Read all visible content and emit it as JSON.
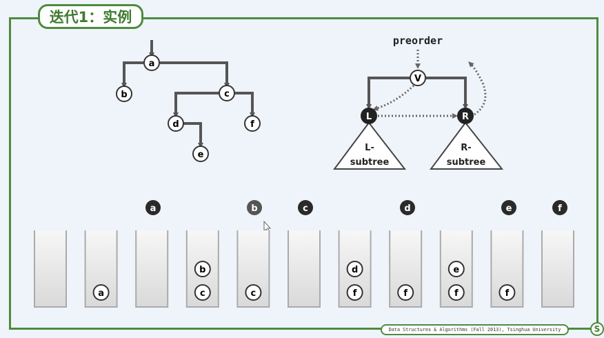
{
  "title": "迭代1：实例",
  "footer": "Data Structures & Algorithms (Fall 2013), Tsinghua University",
  "logo_glyph": "S",
  "example_tree": {
    "nodes": [
      "a",
      "b",
      "c",
      "d",
      "e",
      "f"
    ]
  },
  "schema": {
    "preorder_label": "preorder",
    "root": "V",
    "left": "L",
    "right": "R",
    "left_subtree_line1": "L-",
    "left_subtree_line2": "subtree",
    "right_subtree_line1": "R-",
    "right_subtree_line2": "subtree"
  },
  "visit_sequence": [
    "a",
    "b",
    "c",
    "d",
    "e",
    "f"
  ],
  "stack_states": [
    [],
    [
      "a"
    ],
    [],
    [
      "c",
      "b"
    ],
    [
      "c"
    ],
    [],
    [
      "f",
      "d"
    ],
    [
      "f"
    ],
    [
      "f",
      "e"
    ],
    [
      "f"
    ],
    []
  ],
  "colors": {
    "frame": "#4e8a3e",
    "edge": "#555555",
    "dark_node": "#2b2b2b",
    "background": "#eef4fa"
  }
}
